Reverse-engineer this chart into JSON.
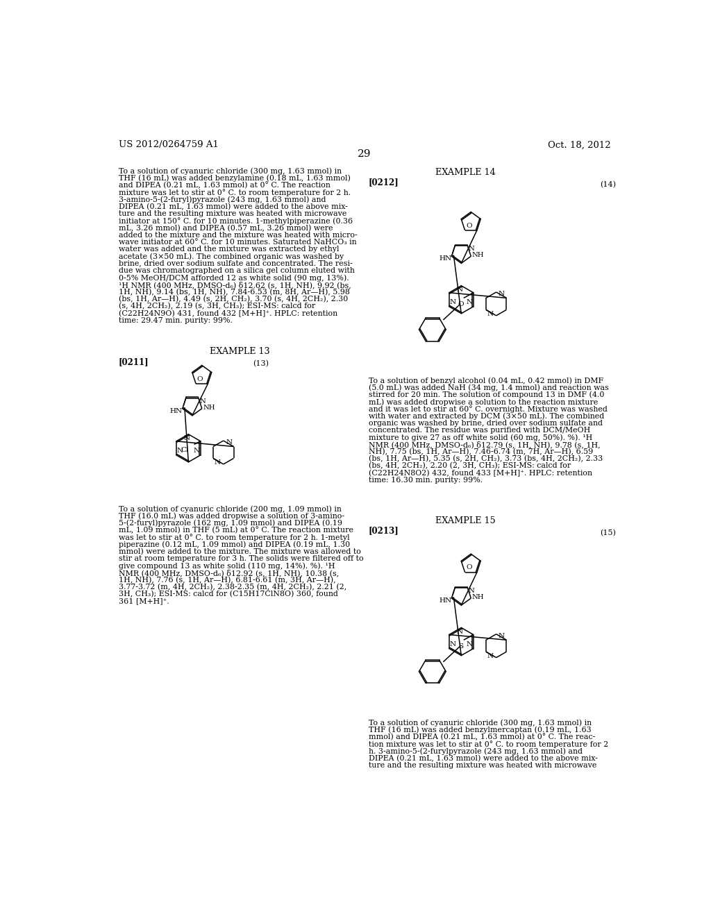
{
  "background_color": "#ffffff",
  "header_left": "US 2012/0264759 A1",
  "header_right": "Oct. 18, 2012",
  "page_number": "29",
  "header_font_size": 9.5,
  "page_number_font_size": 11,
  "body_font_size": 7.9,
  "label_font_size": 8.5,
  "example_font_size": 9.2,
  "body_text_top_left": "To a solution of cyanuric chloride (300 mg, 1.63 mmol) in\nTHF (16 mL) was added benzylamine (0.18 mL, 1.63 mmol)\nand DIPEA (0.21 mL, 1.63 mmol) at 0° C. The reaction\nmixture was let to stir at 0° C. to room temperature for 2 h.\n3-amino-5-(2-furyl)pyrazole (243 mg, 1.63 mmol) and\nDIPEA (0.21 mL, 1.63 mmol) were added to the above mix-\nture and the resulting mixture was heated with microwave\ninitiator at 150° C. for 10 minutes. 1-methylpiperazine (0.36\nmL, 3.26 mmol) and DIPEA (0.57 mL, 3.26 mmol) were\nadded to the mixture and the mixture was heated with micro-\nwave initiator at 60° C. for 10 minutes. Saturated NaHCO₃ in\nwater was added and the mixture was extracted by ethyl\nacetate (3×50 mL). The combined organic was washed by\nbrine, dried over sodium sulfate and concentrated. The resi-\ndue was chromatographed on a silica gel column eluted with\n0-5% MeOH/DCM afforded 12 as white solid (90 mg, 13%).\n¹H NMR (400 MHz, DMSO-d₆) δ12.62 (s, 1H, NH), 9.92 (bs,\n1H, NH), 9.14 (bs, 1H, NH), 7.84-6.53 (m, 8H, Ar—H), 5.98\n(bs, 1H, Ar—H), 4.49 (s, 2H, CH₂), 3.70 (s, 4H, 2CH₂), 2.30\n(s, 4H, 2CH₂), 2.19 (s, 3H, CH₃); ESI-MS: calcd for\n(C22H24N9O) 431, found 432 [M+H]⁺. HPLC: retention\ntime: 29.47 min. purity: 99%.",
  "example13_header": "EXAMPLE 13",
  "example13_label": "[0211]",
  "example13_number": "(13)",
  "example13_text": "To a solution of cyanuric chloride (200 mg, 1.09 mmol) in\nTHF (16.0 mL) was added dropwise a solution of 3-amino-\n5-(2-furyl)pyrazole (162 mg, 1.09 mmol) and DIPEA (0.19\nmL, 1.09 mmol) in THF (5 mL) at 0° C. The reaction mixture\nwas let to stir at 0° C. to room temperature for 2 h. 1-metyl\npiperazine (0.12 mL, 1.09 mmol) and DIPEA (0.19 mL, 1.30\nmmol) were added to the mixture. The mixture was allowed to\nstir at room temperature for 3 h. The solids were filtered off to\ngive compound 13 as white solid (110 mg, 14%). %). ¹H\nNMR (400 MHz, DMSO-d₆) δ12.92 (s, 1H, NH), 10.38 (s,\n1H, NH), 7.76 (s, 1H, Ar—H), 6.81-6.61 (m, 3H, Ar—H),\n3.77-3.72 (m, 4H, 2CH₂), 2.38-2.35 (m, 4H, 2CH₂), 2.21 (2,\n3H, CH₃); ESI-MS: calcd for (C15H17ClN8O) 360, found\n361 [M+H]⁺.",
  "example14_header": "EXAMPLE 14",
  "example14_label": "[0212]",
  "example14_number": "(14)",
  "example14_text": "To a solution of benzyl alcohol (0.04 mL, 0.42 mmol) in DMF\n(5.0 mL) was added NaH (34 mg, 1.4 mmol) and reaction was\nstirred for 20 min. The solution of compound 13 in DMF (4.0\nmL) was added dropwise a solution to the reaction mixture\nand it was let to stir at 60° C. overnight. Mixture was washed\nwith water and extracted by DCM (3×50 mL). The combined\norganic was washed by brine, dried over sodium sulfate and\nconcentrated. The residue was purified with DCM/MeOH\nmixture to give 27 as off white solid (60 mg, 50%). %). ¹H\nNMR (400 MHz, DMSO-d₆) δ12.79 (s, 1H, NH), 9.78 (s, 1H,\nNH), 7.75 (bs, 1H, Ar—H), 7.46-6.74 (m, 7H, Ar—H), 6.59\n(bs, 1H, Ar—H), 5.35 (s, 2H, CH₂), 3.73 (bs, 4H, 2CH₂), 2.33\n(bs, 4H, 2CH₂), 2.20 (2, 3H, CH₃); ESI-MS: calcd for\n(C22H24N8O2) 432, found 433 [M+H]⁺. HPLC: retention\ntime: 16.30 min. purity: 99%.",
  "example15_header": "EXAMPLE 15",
  "example15_label": "[0213]",
  "example15_number": "(15)",
  "example15_text": "To a solution of cyanuric chloride (300 mg, 1.63 mmol) in\nTHF (16 mL) was added benzylmercaptan (0.19 mL, 1.63\nmmol) and DIPEA (0.21 mL, 1.63 mmol) at 0° C. The reac-\ntion mixture was let to stir at 0° C. to room temperature for 2\nh. 3-amino-5-(2-furylpyrazole (243 mg, 1.63 mmol) and\nDIPEA (0.21 mL, 1.63 mmol) were added to the above mix-\nture and the resulting mixture was heated with microwave"
}
